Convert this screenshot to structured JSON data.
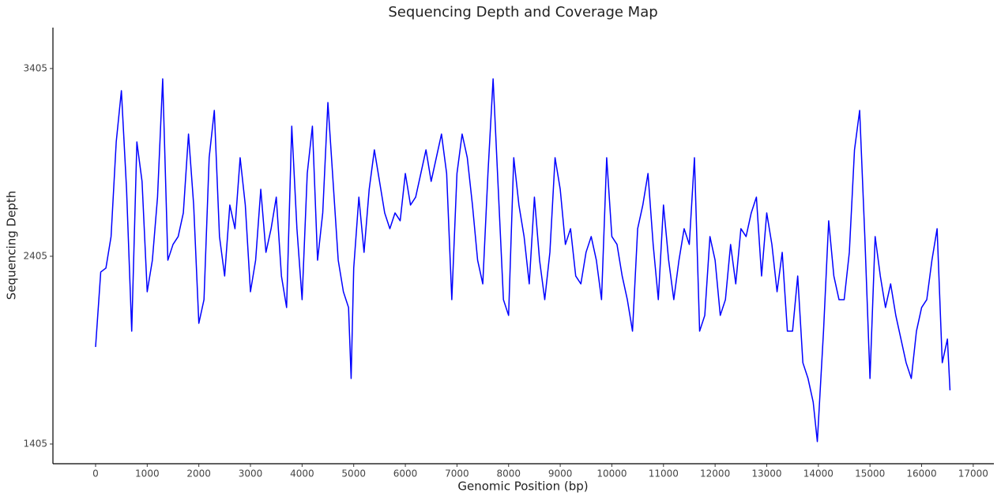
{
  "chart_data": {
    "type": "line",
    "title": "Sequencing Depth and Coverage Map",
    "xlabel": "Genomic Position (bp)",
    "ylabel": "Sequencing Depth",
    "xlim": [
      -826,
      17400
    ],
    "ylim": [
      1300,
      3623
    ],
    "xticks": [
      0,
      1000,
      2000,
      3000,
      4000,
      5000,
      6000,
      7000,
      8000,
      9000,
      10000,
      11000,
      12000,
      13000,
      14000,
      15000,
      16000,
      17000
    ],
    "yticks": [
      1405,
      2405,
      3405
    ],
    "grid": false,
    "series": [
      {
        "name": "Depth",
        "color": "#0000ff",
        "x": [
          0,
          100,
          200,
          300,
          400,
          500,
          600,
          700,
          800,
          900,
          1000,
          1100,
          1200,
          1300,
          1400,
          1500,
          1600,
          1700,
          1800,
          1900,
          2000,
          2100,
          2200,
          2300,
          2400,
          2500,
          2600,
          2700,
          2800,
          2900,
          3000,
          3100,
          3200,
          3300,
          3400,
          3500,
          3600,
          3700,
          3800,
          3900,
          4000,
          4100,
          4200,
          4300,
          4400,
          4500,
          4600,
          4700,
          4800,
          4900,
          4950,
          5000,
          5100,
          5200,
          5300,
          5400,
          5500,
          5600,
          5700,
          5800,
          5900,
          6000,
          6100,
          6200,
          6300,
          6400,
          6500,
          6600,
          6700,
          6800,
          6900,
          7000,
          7100,
          7200,
          7300,
          7400,
          7500,
          7600,
          7700,
          7800,
          7900,
          8000,
          8100,
          8200,
          8300,
          8400,
          8500,
          8600,
          8700,
          8800,
          8900,
          9000,
          9100,
          9200,
          9300,
          9400,
          9500,
          9600,
          9700,
          9800,
          9900,
          10000,
          10100,
          10200,
          10300,
          10400,
          10500,
          10600,
          10700,
          10800,
          10900,
          11000,
          11100,
          11200,
          11300,
          11400,
          11500,
          11600,
          11700,
          11800,
          11900,
          12000,
          12100,
          12200,
          12300,
          12400,
          12500,
          12600,
          12700,
          12800,
          12900,
          13000,
          13100,
          13200,
          13300,
          13400,
          13500,
          13600,
          13700,
          13800,
          13900,
          13980,
          14100,
          14200,
          14300,
          14400,
          14500,
          14600,
          14700,
          14800,
          14900,
          15000,
          15100,
          15200,
          15300,
          15400,
          15500,
          15600,
          15700,
          15800,
          15900,
          16000,
          16100,
          16200,
          16300,
          16400,
          16500,
          16550
        ],
        "values": [
          1922,
          2321,
          2342,
          2510,
          3014,
          3287,
          2762,
          2006,
          3014,
          2804,
          2216,
          2384,
          2720,
          3350,
          2384,
          2468,
          2510,
          2636,
          3056,
          2678,
          2048,
          2174,
          2930,
          3182,
          2510,
          2300,
          2678,
          2552,
          2930,
          2678,
          2216,
          2384,
          2762,
          2426,
          2552,
          2720,
          2300,
          2132,
          3098,
          2552,
          2174,
          2846,
          3098,
          2384,
          2636,
          3224,
          2804,
          2384,
          2216,
          2132,
          1754,
          2342,
          2720,
          2426,
          2762,
          2972,
          2804,
          2636,
          2552,
          2636,
          2594,
          2846,
          2678,
          2720,
          2846,
          2972,
          2804,
          2930,
          3056,
          2846,
          2174,
          2846,
          3056,
          2930,
          2678,
          2384,
          2258,
          2846,
          3350,
          2762,
          2174,
          2090,
          2930,
          2678,
          2510,
          2258,
          2720,
          2384,
          2174,
          2426,
          2930,
          2762,
          2468,
          2552,
          2300,
          2258,
          2426,
          2510,
          2384,
          2174,
          2930,
          2510,
          2468,
          2300,
          2174,
          2006,
          2552,
          2678,
          2846,
          2468,
          2174,
          2678,
          2384,
          2174,
          2384,
          2552,
          2468,
          2930,
          2006,
          2090,
          2510,
          2384,
          2090,
          2174,
          2468,
          2258,
          2552,
          2510,
          2636,
          2720,
          2300,
          2636,
          2468,
          2216,
          2426,
          2006,
          2006,
          2300,
          1838,
          1754,
          1628,
          1418,
          2006,
          2594,
          2300,
          2174,
          2174,
          2426,
          2972,
          3182,
          2510,
          1754,
          2510,
          2300,
          2132,
          2258,
          2090,
          1964,
          1838,
          1754,
          2006,
          2132,
          2174,
          2384,
          2552,
          1838,
          1964,
          1691
        ]
      }
    ]
  }
}
